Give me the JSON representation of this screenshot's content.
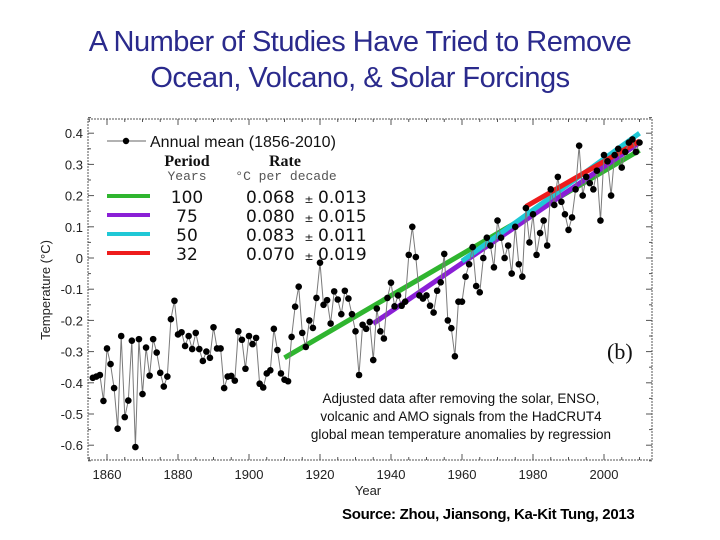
{
  "slide": {
    "title_line1": "A Number of Studies Have Tried to Remove",
    "title_line2": "Ocean, Volcano, & Solar Forcings",
    "source": "Source:  Zhou, Jiansong, Ka-Kit Tung, 2013"
  },
  "colors": {
    "title": "#2a2a8c",
    "series_line": "#7a7a7a",
    "markers": "#000000",
    "trend_100": "#2fb52f",
    "trend_75": "#8a1fd6",
    "trend_50": "#1fc8d6",
    "trend_32": "#ee1c1c"
  },
  "chart_data": {
    "type": "line",
    "title": "",
    "xlabel": "Year",
    "ylabel": "Temperature (°C)",
    "xlim": [
      1853,
      2012
    ],
    "ylim": [
      -0.66,
      0.44
    ],
    "x_ticks": [
      1860,
      1880,
      1900,
      1920,
      1940,
      1960,
      1980,
      2000
    ],
    "y_ticks": [
      -0.6,
      -0.5,
      -0.4,
      -0.3,
      -0.2,
      -0.1,
      0,
      0.1,
      0.2,
      0.3,
      0.4
    ],
    "x_tick_labels": [
      "1860",
      "1880",
      "1900",
      "1920",
      "1940",
      "1960",
      "1980",
      "2000"
    ],
    "y_tick_labels": [
      "-0.6",
      "-0.5",
      "-0.4",
      "-0.3",
      "-0.2",
      "-0.1",
      "0",
      "0.1",
      "0.2",
      "0.3",
      "0.4"
    ],
    "panel_label": "(b)",
    "annotation": [
      "Adjusted data after removing the solar, ENSO,",
      "volcanic and AMO signals from the HadCRUT4",
      "global mean temperature anomalies by regression"
    ],
    "legend": {
      "placement": "top-left",
      "series_label": "Annual mean (1856-2010)",
      "header_period": "Period",
      "header_rate": "Rate",
      "subheader_period": "Years",
      "subheader_rate": "°C per decade",
      "rows": [
        {
          "years": "100",
          "rate": "0.068",
          "pm": "±",
          "err": "0.013",
          "color_key": "trend_100"
        },
        {
          "years": "75",
          "rate": "0.080",
          "pm": "±",
          "err": "0.015",
          "color_key": "trend_75"
        },
        {
          "years": "50",
          "rate": "0.083",
          "pm": "±",
          "err": "0.011",
          "color_key": "trend_50"
        },
        {
          "years": "32",
          "rate": "0.070",
          "pm": "±",
          "err": "0.019",
          "color_key": "trend_32"
        }
      ]
    },
    "series": [
      {
        "name": "Annual mean (1856-2010)",
        "start_year": 1856,
        "values": [
          -0.384,
          -0.38,
          -0.375,
          -0.458,
          -0.29,
          -0.34,
          -0.417,
          -0.547,
          -0.25,
          -0.51,
          -0.457,
          -0.265,
          -0.606,
          -0.26,
          -0.436,
          -0.287,
          -0.377,
          -0.26,
          -0.303,
          -0.368,
          -0.412,
          -0.38,
          -0.196,
          -0.137,
          -0.245,
          -0.238,
          -0.282,
          -0.25,
          -0.292,
          -0.24,
          -0.292,
          -0.33,
          -0.3,
          -0.32,
          -0.222,
          -0.29,
          -0.29,
          -0.417,
          -0.38,
          -0.378,
          -0.393,
          -0.235,
          -0.262,
          -0.355,
          -0.25,
          -0.276,
          -0.256,
          -0.403,
          -0.415,
          -0.37,
          -0.36,
          -0.227,
          -0.295,
          -0.37,
          -0.39,
          -0.395,
          -0.253,
          -0.156,
          -0.092,
          -0.24,
          -0.285,
          -0.2,
          -0.224,
          -0.128,
          -0.015,
          -0.15,
          -0.135,
          -0.21,
          -0.107,
          -0.133,
          -0.18,
          -0.105,
          -0.13,
          -0.18,
          -0.235,
          -0.375,
          -0.214,
          -0.227,
          -0.205,
          -0.327,
          -0.162,
          -0.235,
          -0.258,
          -0.128,
          -0.079,
          -0.155,
          -0.12,
          -0.153,
          -0.14,
          0.01,
          0.1,
          0.003,
          -0.12,
          -0.13,
          -0.12,
          -0.153,
          -0.175,
          -0.105,
          -0.078,
          0.013,
          -0.2,
          -0.225,
          -0.315,
          -0.14,
          -0.14,
          -0.06,
          -0.02,
          0.035,
          -0.09,
          -0.11,
          0.0,
          0.065,
          0.04,
          -0.03,
          0.12,
          0.065,
          0.0,
          0.04,
          -0.05,
          0.1,
          -0.02,
          -0.06,
          0.16,
          0.05,
          0.14,
          0.01,
          0.08,
          0.12,
          0.04,
          0.22,
          0.17,
          0.26,
          0.18,
          0.14,
          0.09,
          0.13,
          0.22,
          0.36,
          0.2,
          0.26,
          0.24,
          0.22,
          0.28,
          0.12,
          0.33,
          0.31,
          0.2,
          0.33,
          0.35,
          0.29,
          0.34,
          0.37,
          0.38,
          0.34,
          0.37
        ]
      }
    ],
    "trend_lines": [
      {
        "name": "100-year trend",
        "period_years": 100,
        "x": [
          1910,
          2010
        ],
        "y": [
          -0.32,
          0.345
        ],
        "color_key": "trend_100"
      },
      {
        "name": "75-year trend",
        "period_years": 75,
        "x": [
          1935,
          2010
        ],
        "y": [
          -0.21,
          0.37
        ],
        "color_key": "trend_75"
      },
      {
        "name": "50-year trend",
        "period_years": 50,
        "x": [
          1960,
          2010
        ],
        "y": [
          -0.01,
          0.4
        ],
        "color_key": "trend_50"
      },
      {
        "name": "32-year trend",
        "period_years": 32,
        "x": [
          1978,
          2010
        ],
        "y": [
          0.165,
          0.375
        ],
        "color_key": "trend_32"
      }
    ],
    "grid": false
  }
}
